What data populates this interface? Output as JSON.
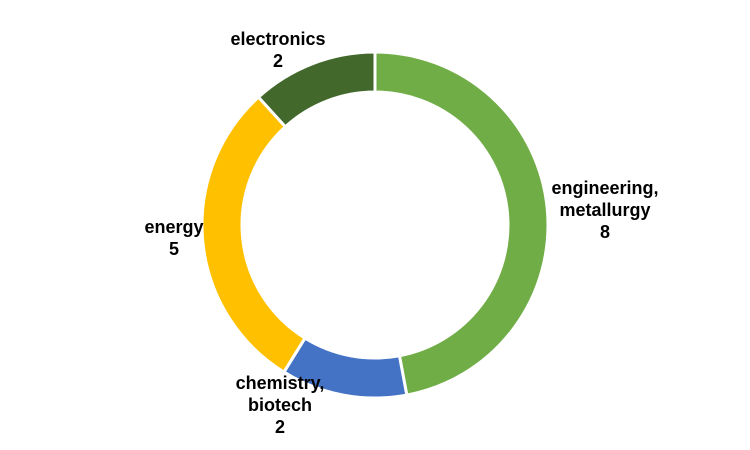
{
  "chart_data": {
    "type": "donut",
    "categories": [
      "engineering, metallurgy",
      "chemistry, biotech",
      "energy",
      "electronics"
    ],
    "values": [
      8,
      2,
      5,
      2
    ],
    "colors": [
      "#70ad47",
      "#4472c4",
      "#ffc000",
      "#43682b"
    ]
  }
}
